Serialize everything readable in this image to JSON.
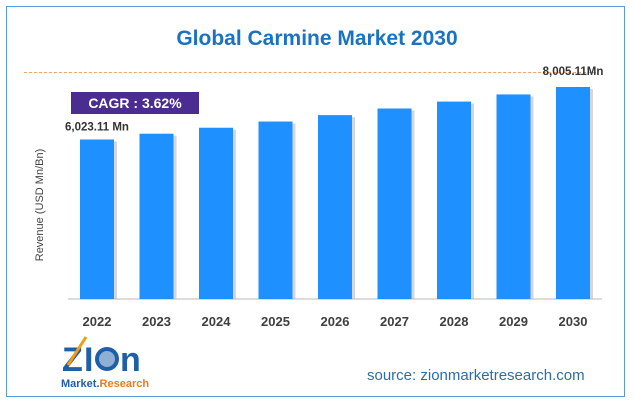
{
  "chart_data": {
    "type": "bar",
    "title": "Global Carmine Market 2030",
    "ylabel": "Revenue (USD Mn/Bn)",
    "categories": [
      "2022",
      "2023",
      "2024",
      "2025",
      "2026",
      "2027",
      "2028",
      "2029",
      "2030"
    ],
    "values": [
      6023.11,
      6241,
      6467,
      6701,
      6943,
      7194,
      7454,
      7724,
      8005.11
    ],
    "data_labels": {
      "first": "6,023.11 Mn",
      "last": "8,005.11Mn"
    },
    "ylim": [
      0,
      8005.11
    ],
    "grid": false,
    "bar_color": "#1e90ff",
    "annotation": "CAGR : 3.62%"
  },
  "logo": {
    "text_main": "ZION",
    "text_sub": "Market.Research"
  },
  "source": "source: zionmarketresearch.com"
}
